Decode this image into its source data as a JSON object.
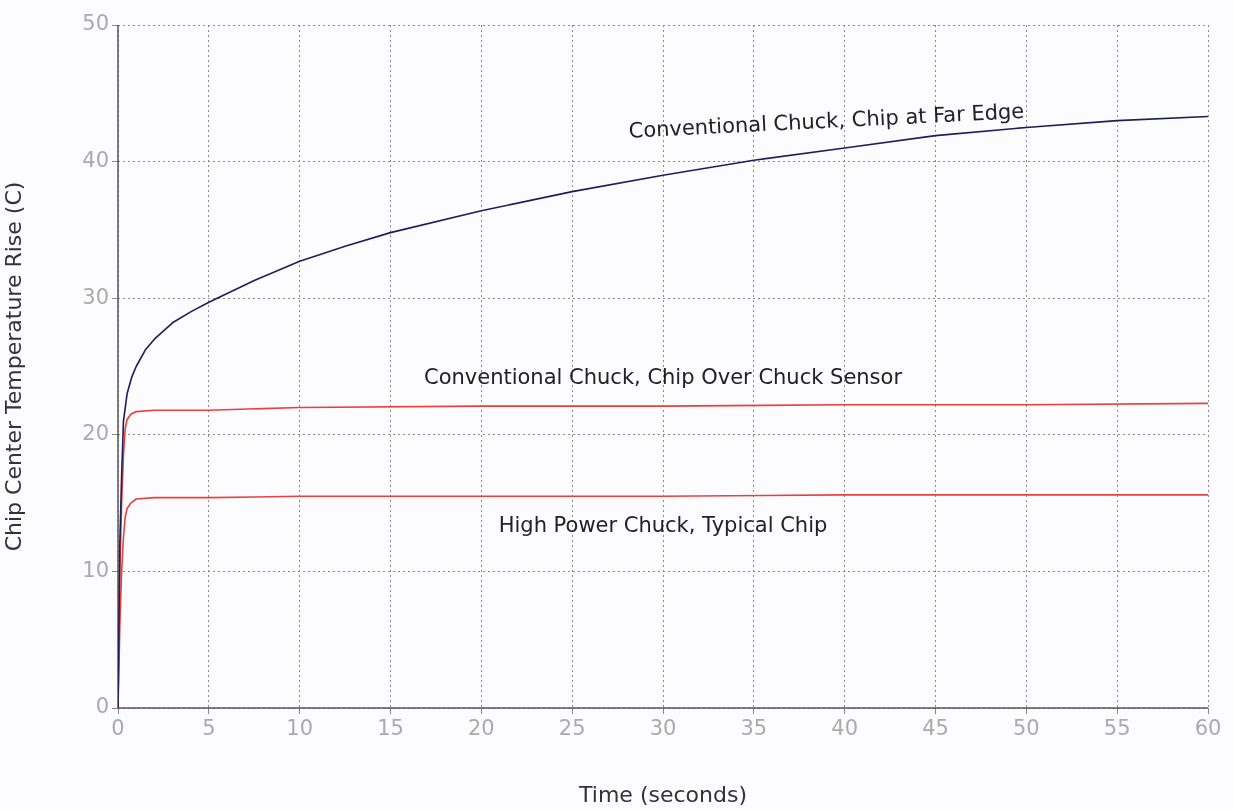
{
  "chart_data": {
    "type": "line",
    "xlabel": "Time (seconds)",
    "ylabel": "Chip Center Temperature Rise (C)",
    "xlim": [
      0,
      60
    ],
    "xticks": [
      0,
      5,
      10,
      15,
      20,
      25,
      30,
      35,
      40,
      45,
      50,
      55,
      60
    ],
    "ylim": [
      0,
      50
    ],
    "yticks": [
      0,
      10,
      20,
      30,
      40,
      50
    ],
    "grid": true,
    "legend": false,
    "marker": "none",
    "line_style": "solid",
    "series": [
      {
        "name": "Conventional Chuck, Chip at Far Edge",
        "color": "#1c1f5a",
        "x": [
          0,
          0.1,
          0.2,
          0.3,
          0.5,
          0.75,
          1,
          1.5,
          2,
          3,
          4,
          5,
          7.5,
          10,
          12.5,
          15,
          20,
          25,
          30,
          35,
          40,
          45,
          50,
          55,
          60
        ],
        "values": [
          0,
          12,
          17,
          21,
          23,
          24.2,
          25,
          26.2,
          27,
          28.2,
          29,
          29.7,
          31.3,
          32.7,
          33.8,
          34.8,
          36.4,
          37.8,
          39,
          40.1,
          41,
          41.9,
          42.5,
          43,
          43.3
        ]
      },
      {
        "name": "Conventional Chuck, Chip Over Chuck Sensor",
        "color": "#e8403f",
        "x": [
          0,
          0.1,
          0.2,
          0.3,
          0.4,
          0.5,
          0.7,
          1,
          2,
          5,
          10,
          20,
          30,
          40,
          50,
          60
        ],
        "values": [
          0,
          10,
          15,
          18.5,
          20.5,
          21.1,
          21.5,
          21.7,
          21.8,
          21.8,
          22,
          22.1,
          22.1,
          22.2,
          22.2,
          22.3
        ]
      },
      {
        "name": "High Power Chuck, Typical Chip",
        "color": "#e8403f",
        "x": [
          0,
          0.1,
          0.2,
          0.3,
          0.4,
          0.5,
          0.7,
          1,
          2,
          5,
          10,
          20,
          30,
          40,
          50,
          60
        ],
        "values": [
          0,
          6,
          10,
          12.5,
          14,
          14.6,
          15,
          15.3,
          15.4,
          15.4,
          15.5,
          15.5,
          15.5,
          15.6,
          15.6,
          15.6
        ]
      }
    ]
  }
}
